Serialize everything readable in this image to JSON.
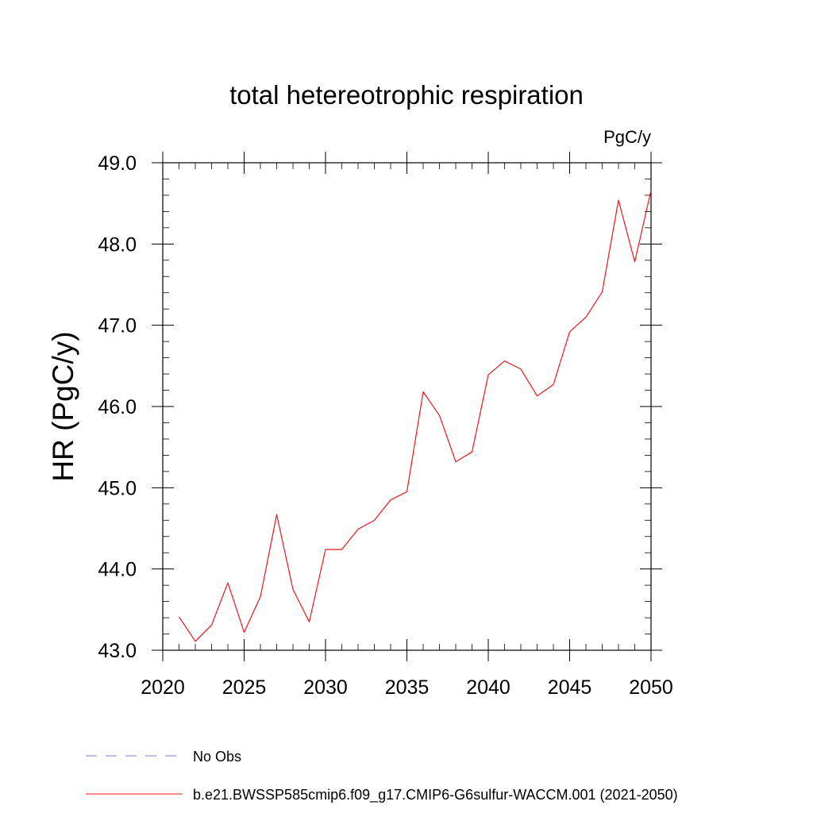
{
  "chart_data": {
    "type": "line",
    "title": "total hetereotrophic respiration",
    "units_label": "PgC/y",
    "ylabel": "HR  (PgC/y)",
    "xlabel": "",
    "xlim": [
      2020,
      2050
    ],
    "ylim": [
      43.0,
      49.0
    ],
    "x_ticks": [
      2020,
      2025,
      2030,
      2035,
      2040,
      2045,
      2050
    ],
    "x_tick_labels": [
      "2020",
      "2025",
      "2030",
      "2035",
      "2040",
      "2045",
      "2050"
    ],
    "y_ticks": [
      43,
      44,
      45,
      46,
      47,
      48,
      49
    ],
    "y_tick_labels": [
      "43.0",
      "44.0",
      "45.0",
      "46.0",
      "47.0",
      "48.0",
      "49.0"
    ],
    "grid": false,
    "legend_position": "bottom",
    "x": [
      2021,
      2022,
      2023,
      2024,
      2025,
      2026,
      2027,
      2028,
      2029,
      2030,
      2031,
      2032,
      2033,
      2034,
      2035,
      2036,
      2037,
      2038,
      2039,
      2040,
      2041,
      2042,
      2043,
      2044,
      2045,
      2046,
      2047,
      2048,
      2049,
      2050
    ],
    "series": [
      {
        "name": "b.e21.BWSSP585cmip6.f09_g17.CMIP6-G6sulfur-WACCM.001 (2021-2050)",
        "color": "#e41a1c",
        "style": "solid",
        "values": [
          43.41,
          43.11,
          43.31,
          43.83,
          43.22,
          43.66,
          44.67,
          43.75,
          43.35,
          44.24,
          44.24,
          44.49,
          44.6,
          44.85,
          44.95,
          46.18,
          45.89,
          45.32,
          45.44,
          46.39,
          46.56,
          46.46,
          46.13,
          46.27,
          46.92,
          47.1,
          47.41,
          48.54,
          47.78,
          48.66
        ]
      }
    ],
    "legend": [
      {
        "label": "No Obs",
        "color": "#7b7bd6",
        "style": "dashed"
      },
      {
        "label": "b.e21.BWSSP585cmip6.f09_g17.CMIP6-G6sulfur-WACCM.001 (2021-2050)",
        "color": "#e41a1c",
        "style": "solid"
      }
    ]
  }
}
